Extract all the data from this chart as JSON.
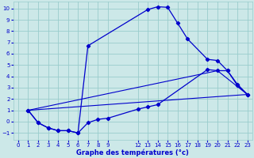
{
  "xlabel": "Graphe des températures (°c)",
  "bg_color": "#cce8e8",
  "grid_color": "#99cccc",
  "line_color": "#0000cc",
  "xlim": [
    -0.5,
    23.5
  ],
  "ylim": [
    -1.6,
    10.6
  ],
  "xticks": [
    0,
    1,
    2,
    3,
    4,
    5,
    6,
    7,
    8,
    9,
    12,
    13,
    14,
    15,
    16,
    17,
    18,
    19,
    20,
    21,
    22,
    23
  ],
  "yticks": [
    -1,
    0,
    1,
    2,
    3,
    4,
    5,
    6,
    7,
    8,
    9,
    10
  ],
  "series1_x": [
    1,
    2,
    3,
    4,
    5,
    6,
    7,
    13,
    14,
    15,
    16,
    17,
    19,
    20,
    21,
    22,
    23
  ],
  "series1_y": [
    1.0,
    -0.1,
    -0.55,
    -0.8,
    -0.8,
    -1.0,
    6.7,
    9.9,
    10.15,
    10.1,
    8.7,
    7.3,
    5.5,
    5.4,
    4.5,
    3.2,
    2.4
  ],
  "series2_x": [
    1,
    2,
    3,
    4,
    5,
    6,
    7,
    8,
    9,
    12,
    13,
    14,
    19,
    20,
    21,
    22,
    23
  ],
  "series2_y": [
    1.0,
    -0.1,
    -0.55,
    -0.8,
    -0.8,
    -1.0,
    -0.1,
    0.2,
    0.3,
    1.1,
    1.3,
    1.5,
    4.6,
    4.5,
    4.5,
    3.3,
    2.4
  ],
  "series3_x": [
    1,
    23
  ],
  "series3_y": [
    1.0,
    2.4
  ],
  "series4_x": [
    1,
    20,
    23
  ],
  "series4_y": [
    1.0,
    4.5,
    2.4
  ]
}
